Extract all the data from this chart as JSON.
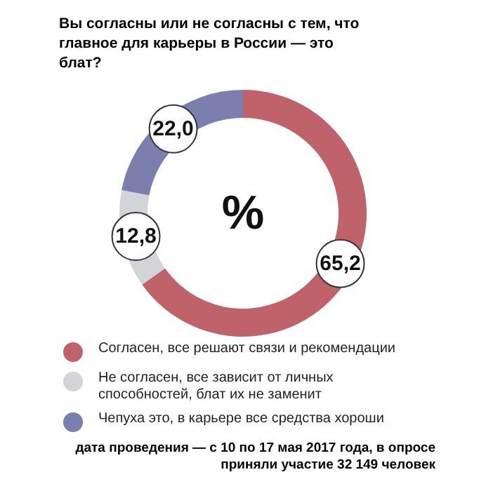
{
  "chart_data": {
    "type": "donut",
    "title": "Вы согласны или не согласны с тем, что главное для карьеры в России — это блат?",
    "categories": [
      "Согласен, все решают связи и рекомендации",
      "Не согласен, все зависит от личных способностей, блат их не заменит",
      "Чепуха это, в карьере все средства хороши"
    ],
    "values": [
      65.2,
      12.8,
      22.0
    ],
    "colors": [
      "#c0626a",
      "#d3d4d8",
      "#7b7fad"
    ],
    "value_labels": [
      "65,2",
      "12,8",
      "22,0"
    ],
    "legend": "bottom",
    "annotations": [
      "%",
      "дата проведения — с 10 по 17 мая 2017 года, в опросе приняли участие 32 149 человек"
    ]
  }
}
